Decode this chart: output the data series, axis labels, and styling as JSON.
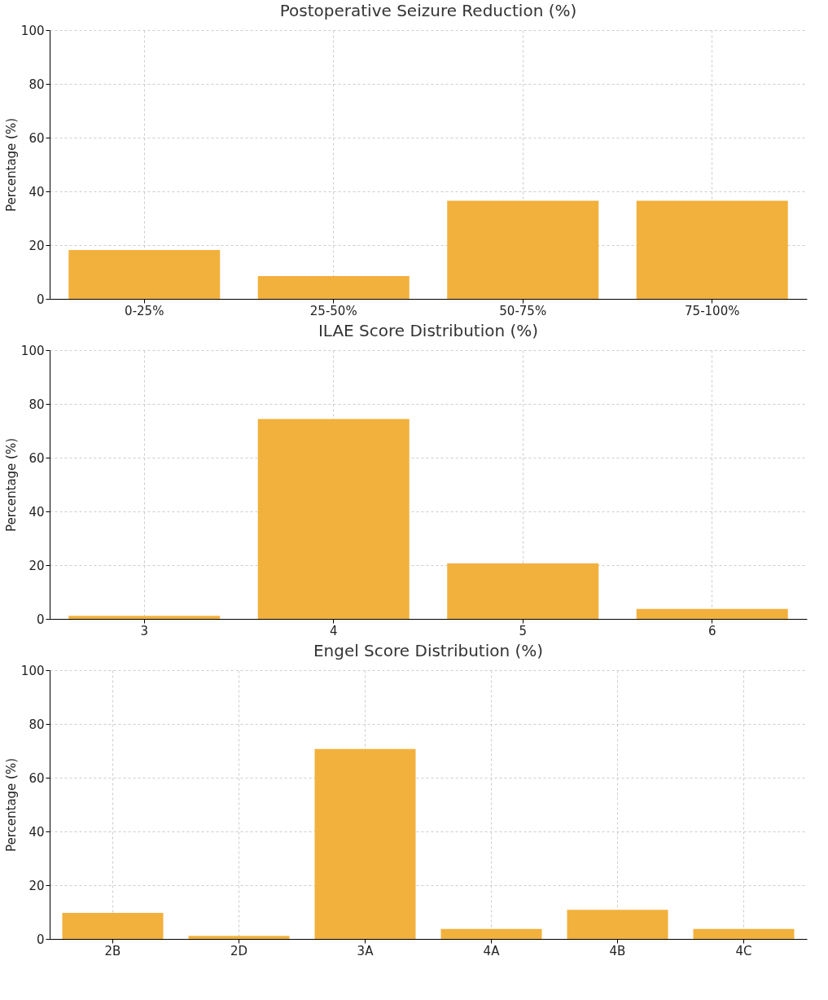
{
  "chart_data": [
    {
      "type": "bar",
      "title": "Postoperative Seizure Reduction (%)",
      "ylabel": "Percentage (%)",
      "categories": [
        "0-25%",
        "25-50%",
        "50-75%",
        "75-100%"
      ],
      "values": [
        18.2,
        8.5,
        36.5,
        36.5
      ],
      "color": "#f2b13d",
      "ylim": [
        0,
        100
      ],
      "yticks": [
        0,
        20,
        40,
        60,
        80,
        100
      ],
      "grid": true
    },
    {
      "type": "bar",
      "title": "ILAE Score Distribution (%)",
      "ylabel": "Percentage (%)",
      "categories": [
        "3",
        "4",
        "5",
        "6"
      ],
      "values": [
        1.1,
        74.4,
        20.7,
        3.7
      ],
      "color": "#f2b13d",
      "ylim": [
        0,
        100
      ],
      "yticks": [
        0,
        20,
        40,
        60,
        80,
        100
      ],
      "grid": true
    },
    {
      "type": "bar",
      "title": "Engel Score Distribution (%)",
      "ylabel": "Percentage (%)",
      "categories": [
        "2B",
        "2D",
        "3A",
        "4A",
        "4B",
        "4C"
      ],
      "values": [
        9.7,
        1.1,
        70.7,
        3.7,
        10.8,
        3.7
      ],
      "color": "#f2b13d",
      "ylim": [
        0,
        100
      ],
      "yticks": [
        0,
        20,
        40,
        60,
        80,
        100
      ],
      "grid": true
    }
  ]
}
